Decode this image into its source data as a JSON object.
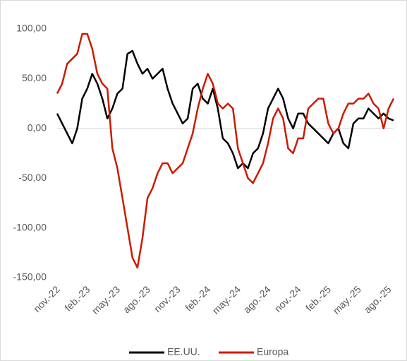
{
  "chart_data": {
    "type": "line",
    "categories": [
      "nov.-22",
      null,
      null,
      null,
      null,
      null,
      "feb.-23",
      null,
      null,
      null,
      null,
      null,
      "may.-23",
      null,
      null,
      null,
      null,
      null,
      "ago.-23",
      null,
      null,
      null,
      null,
      null,
      "nov.-23",
      null,
      null,
      null,
      null,
      null,
      "feb.-24",
      null,
      null,
      null,
      null,
      null,
      "may.-24",
      null,
      null,
      null,
      null,
      null,
      "ago.-24",
      null,
      null,
      null,
      null,
      null,
      "nov.-24",
      null,
      null,
      null,
      null,
      null,
      "feb.-25",
      null,
      null,
      null,
      null,
      null,
      "may.-25",
      null,
      null,
      null,
      null,
      null,
      "ago.-25",
      null
    ],
    "series": [
      {
        "name": "EE.UU.",
        "color": "#000000",
        "values": [
          15,
          5,
          -5,
          -15,
          0,
          30,
          40,
          55,
          45,
          30,
          10,
          20,
          35,
          40,
          75,
          78,
          65,
          55,
          60,
          50,
          55,
          60,
          40,
          25,
          15,
          5,
          10,
          40,
          45,
          30,
          25,
          40,
          20,
          -10,
          -15,
          -25,
          -40,
          -35,
          -40,
          -25,
          -20,
          -5,
          20,
          30,
          40,
          30,
          10,
          0,
          15,
          15,
          5,
          0,
          -5,
          -10,
          -15,
          -5,
          0,
          -15,
          -20,
          5,
          10,
          10,
          20,
          15,
          10,
          15,
          10,
          8
        ]
      },
      {
        "name": "Europa",
        "color": "#cc1a00",
        "values": [
          35,
          45,
          65,
          70,
          75,
          95,
          95,
          80,
          55,
          45,
          40,
          -20,
          -40,
          -70,
          -100,
          -130,
          -140,
          -110,
          -70,
          -60,
          -45,
          -35,
          -35,
          -45,
          -40,
          -35,
          -20,
          -5,
          20,
          40,
          55,
          45,
          25,
          20,
          25,
          20,
          -20,
          -35,
          -50,
          -55,
          -45,
          -35,
          -15,
          10,
          20,
          10,
          -20,
          -25,
          -10,
          -10,
          20,
          25,
          30,
          30,
          5,
          -5,
          0,
          15,
          25,
          25,
          30,
          30,
          35,
          25,
          20,
          0,
          20,
          30
        ]
      }
    ],
    "ylim": [
      -150,
      100
    ],
    "yticks": [
      {
        "value": -150,
        "label": "-150,00"
      },
      {
        "value": -100,
        "label": "-100,00"
      },
      {
        "value": -50,
        "label": "-50,00"
      },
      {
        "value": 0,
        "label": "0,00"
      },
      {
        "value": 50,
        "label": "50,00"
      },
      {
        "value": 100,
        "label": "100,00"
      }
    ],
    "grid": false,
    "legend": "bottom"
  }
}
